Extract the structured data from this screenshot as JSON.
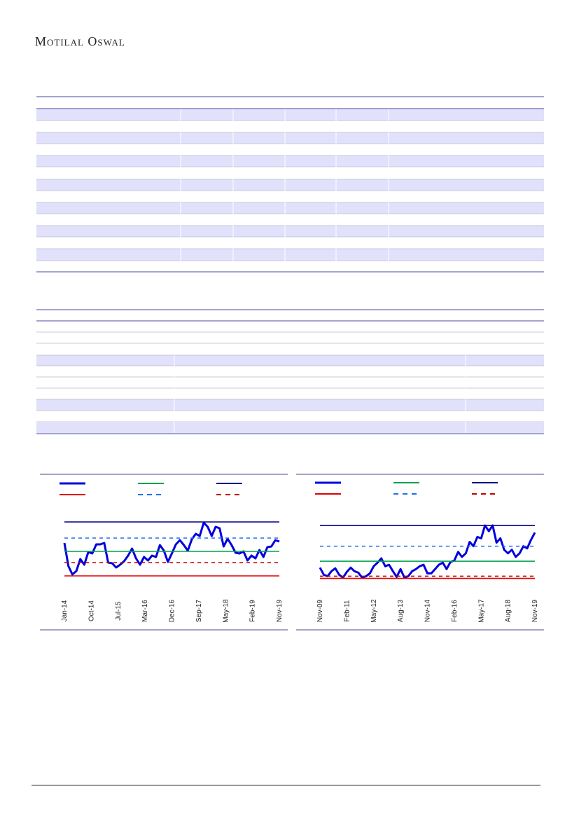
{
  "header": {
    "brand": "Motilal Oswal"
  },
  "chart_data": [
    {
      "type": "line",
      "ylim": [
        0,
        100
      ],
      "x_axis_labels": [
        "Jan-14",
        "Oct-14",
        "Jul-15",
        "Mar-16",
        "Dec-16",
        "Sep-17",
        "May-18",
        "Feb-19",
        "Nov-19"
      ],
      "series": [
        {
          "color": "#0000dd",
          "values": [
            70,
            37,
            25,
            30,
            47,
            39,
            57,
            55,
            68,
            68,
            70,
            42,
            41,
            35,
            39,
            44,
            52,
            62,
            48,
            39,
            50,
            45,
            52,
            50,
            67,
            59,
            43,
            55,
            68,
            74,
            67,
            59,
            75,
            83,
            80,
            99,
            93,
            80,
            93,
            91,
            65,
            76,
            67,
            56,
            55,
            58,
            45,
            52,
            48,
            60,
            50,
            64,
            65,
            74,
            72
          ]
        },
        {
          "color": "#00a050",
          "level": 58
        },
        {
          "color": "#000080",
          "level": 100
        },
        {
          "color": "#e00000",
          "level": 23
        },
        {
          "color": "#1e6ef0",
          "level": 77,
          "dash": true
        },
        {
          "color": "#c00000",
          "level": 42,
          "dash": true
        }
      ]
    },
    {
      "type": "line",
      "ylim": [
        0,
        100
      ],
      "x_axis_labels": [
        "Nov-09",
        "Feb-11",
        "May-12",
        "Aug-13",
        "Nov-14",
        "Feb-16",
        "May-17",
        "Aug-18",
        "Nov-19"
      ],
      "series": [
        {
          "color": "#0000dd",
          "values": [
            39,
            29,
            27,
            34,
            38,
            29,
            25,
            33,
            39,
            34,
            32,
            25,
            27,
            31,
            41,
            46,
            52,
            41,
            43,
            34,
            26,
            37,
            25,
            27,
            34,
            37,
            41,
            43,
            31,
            31,
            37,
            43,
            46,
            37,
            47,
            49,
            61,
            54,
            59,
            75,
            69,
            82,
            80,
            98,
            90,
            98,
            74,
            80,
            64,
            59,
            64,
            54,
            59,
            69,
            66,
            78,
            88
          ]
        },
        {
          "color": "#00a050",
          "level": 48
        },
        {
          "color": "#000080",
          "level": 98
        },
        {
          "color": "#e00000",
          "level": 24
        },
        {
          "color": "#1e6ef0",
          "level": 69,
          "dash": true
        },
        {
          "color": "#c00000",
          "level": 27,
          "dash": true
        }
      ]
    }
  ]
}
